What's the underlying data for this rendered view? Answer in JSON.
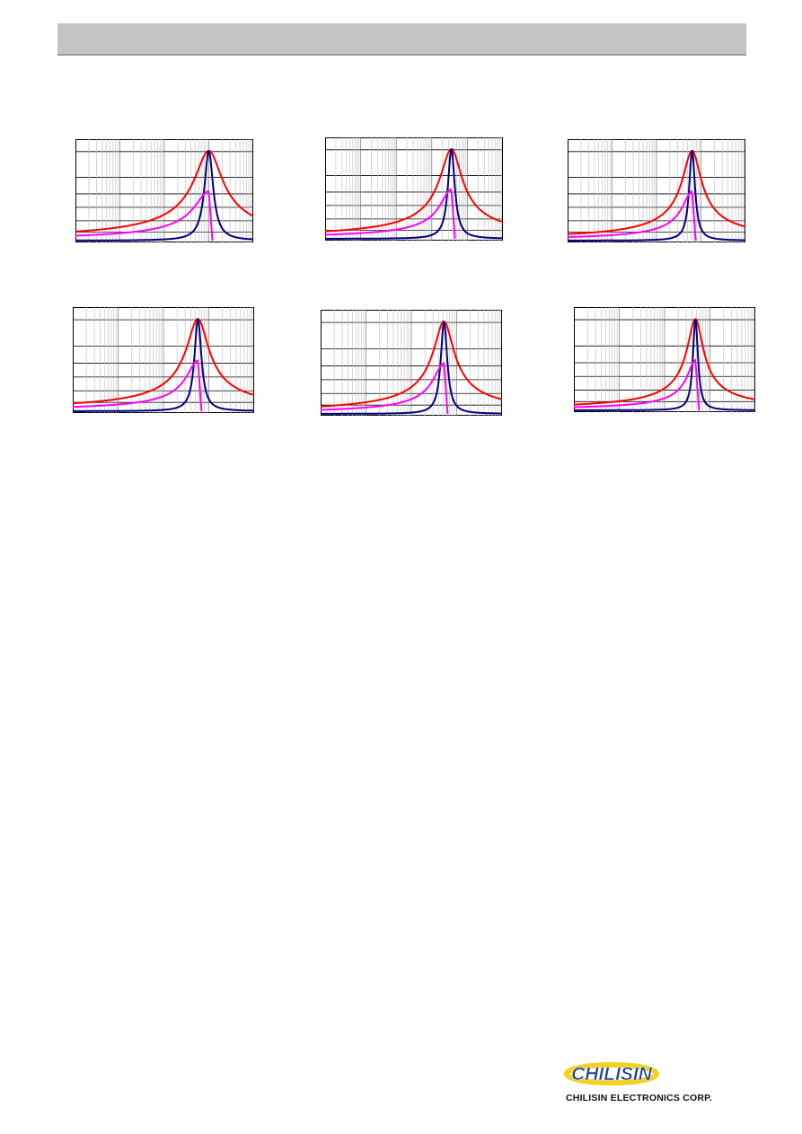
{
  "header": {
    "bar_color": "#c4c4c4"
  },
  "series_colors": {
    "Z": "#ff0000",
    "R": "#000080",
    "X": "#ff00ff"
  },
  "chart_data": [
    {
      "type": "line",
      "xscale": "log",
      "ylim": [
        0,
        1
      ],
      "grid": true,
      "peak": 0.75,
      "decade": 4,
      "width": 0.09,
      "x_dip": 0.79,
      "series": [
        {
          "key": "Z"
        },
        {
          "key": "R"
        },
        {
          "key": "X"
        }
      ]
    },
    {
      "type": "line",
      "xscale": "log",
      "ylim": [
        0,
        1
      ],
      "grid": true,
      "peak": 0.71,
      "decade": 5,
      "width": 0.07,
      "x_dip": 0.73,
      "series": [
        {
          "key": "Z"
        },
        {
          "key": "R"
        },
        {
          "key": "X"
        }
      ]
    },
    {
      "type": "line",
      "xscale": "log",
      "ylim": [
        0,
        1
      ],
      "grid": true,
      "peak": 0.7,
      "decade": 4,
      "width": 0.06,
      "x_dip": 0.71,
      "series": [
        {
          "key": "Z"
        },
        {
          "key": "R"
        },
        {
          "key": "X"
        }
      ]
    },
    {
      "type": "line",
      "xscale": "log",
      "ylim": [
        0,
        1
      ],
      "grid": true,
      "peak": 0.69,
      "decade": 4,
      "width": 0.07,
      "x_dip": 0.7,
      "series": [
        {
          "key": "Z"
        },
        {
          "key": "R"
        },
        {
          "key": "X"
        }
      ]
    },
    {
      "type": "line",
      "xscale": "log",
      "ylim": [
        0,
        1
      ],
      "grid": true,
      "peak": 0.68,
      "decade": 4,
      "width": 0.065,
      "x_dip": 0.69,
      "series": [
        {
          "key": "Z"
        },
        {
          "key": "R"
        },
        {
          "key": "X"
        }
      ]
    },
    {
      "type": "line",
      "xscale": "log",
      "ylim": [
        0,
        1
      ],
      "grid": true,
      "peak": 0.67,
      "decade": 4,
      "width": 0.05,
      "x_dip": 0.67,
      "series": [
        {
          "key": "Z"
        },
        {
          "key": "R"
        },
        {
          "key": "X"
        }
      ]
    }
  ],
  "logo": {
    "wordmark": "CHILISIN",
    "company": "CHILISIN ELECTRONICS CORP.",
    "ring_color": "#f3d21b",
    "mark_color": "#1c3f95"
  }
}
